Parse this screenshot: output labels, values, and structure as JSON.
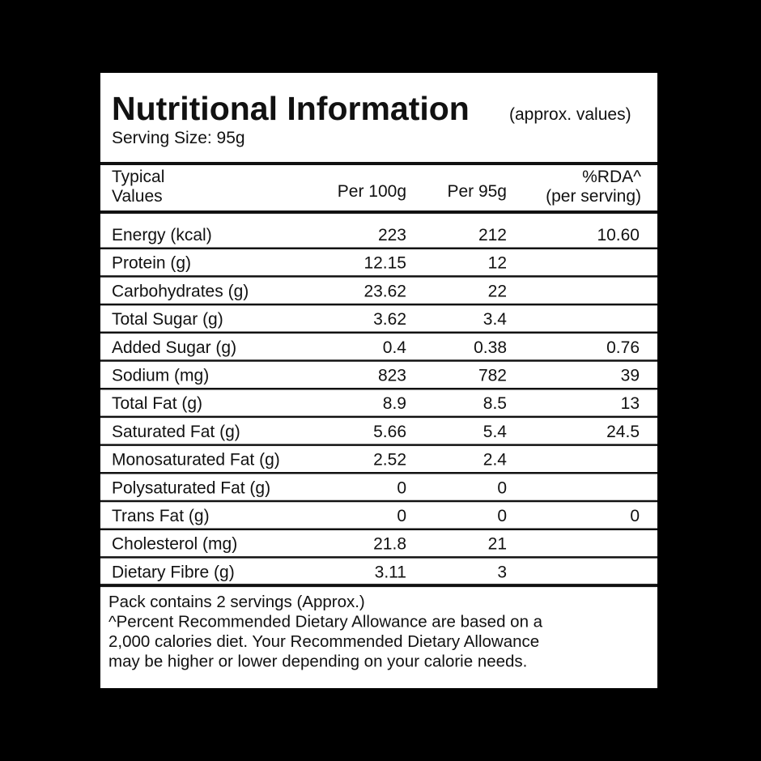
{
  "header": {
    "title": "Nutritional Information",
    "note": "(approx. values)",
    "serving_size": "Serving Size: 95g"
  },
  "table": {
    "columns": {
      "name": [
        "Typical",
        "Values"
      ],
      "per_100g": [
        "Per 100g"
      ],
      "per_95g": [
        "Per 95g"
      ],
      "rda": [
        "%RDA^",
        "(per serving)"
      ]
    },
    "rows": [
      {
        "name": "Energy (kcal)",
        "per_100g": "223",
        "per_95g": "212",
        "rda": "10.60"
      },
      {
        "name": "Protein (g)",
        "per_100g": "12.15",
        "per_95g": "12"
      },
      {
        "name": "Carbohydrates (g)",
        "per_100g": "23.62",
        "per_95g": "22"
      },
      {
        "name": "Total Sugar (g)",
        "per_100g": "3.62",
        "per_95g": "3.4"
      },
      {
        "name": "Added Sugar (g)",
        "per_100g": "0.4",
        "per_95g": "0.38",
        "rda": "0.76"
      },
      {
        "name": "Sodium (mg)",
        "per_100g": "823",
        "per_95g": "782",
        "rda": "39"
      },
      {
        "name": "Total Fat (g)",
        "per_100g": "8.9",
        "per_95g": "8.5",
        "rda": "13"
      },
      {
        "name": "Saturated Fat (g)",
        "per_100g": "5.66",
        "per_95g": "5.4",
        "rda": "24.5"
      },
      {
        "name": "Monosaturated Fat (g)",
        "per_100g": "2.52",
        "per_95g": "2.4"
      },
      {
        "name": "Polysaturated Fat (g)",
        "per_100g": "0",
        "per_95g": "0"
      },
      {
        "name": "Trans Fat (g)",
        "per_100g": "0",
        "per_95g": "0",
        "rda": "0"
      },
      {
        "name": "Cholesterol (mg)",
        "per_100g": "21.8",
        "per_95g": "21"
      },
      {
        "name": "Dietary Fibre (g)",
        "per_100g": "3.11",
        "per_95g": "3"
      }
    ]
  },
  "footer": {
    "lines": [
      "Pack contains 2 servings (Approx.)",
      "^Percent Recommended Dietary Allowance are based on a",
      "2,000 calories diet. Your Recommended Dietary Allowance",
      "may be higher or lower depending on your calorie needs."
    ]
  }
}
